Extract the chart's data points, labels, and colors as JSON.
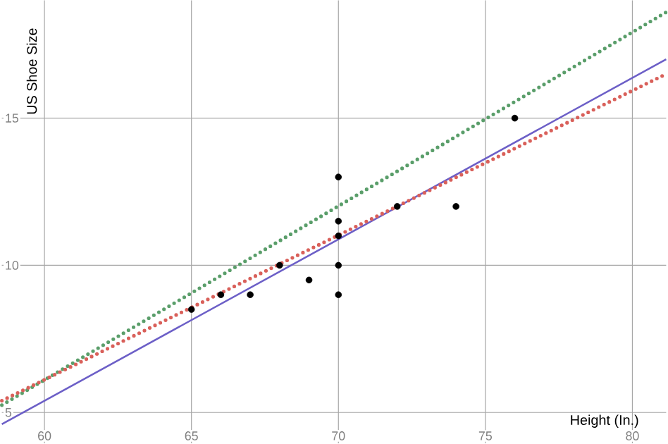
{
  "chart_data": {
    "type": "line",
    "xlabel": "Height (In.)",
    "ylabel": "US Shoe Size",
    "xlim": [
      58.55,
      81.15
    ],
    "ylim": [
      3.95,
      19
    ],
    "xticks": [
      60,
      65,
      70,
      75,
      80
    ],
    "yticks": [
      5,
      10,
      15
    ],
    "grid": true,
    "series": [
      {
        "color": "#6c5fc7",
        "marker": "none",
        "line_style": "solid",
        "x": [
          58.55,
          81.15
        ],
        "values": [
          4.6,
          17
        ]
      },
      {
        "color": "#5a9e6a",
        "marker": "none",
        "line_style": "dotted",
        "x": [
          58.55,
          81.15
        ],
        "values": [
          5.25,
          18.6
        ]
      },
      {
        "color": "#d9605a",
        "marker": "none",
        "line_style": "dotted",
        "x": [
          58.55,
          81.15
        ],
        "values": [
          5.4,
          16.5
        ]
      },
      {
        "type": "scatter",
        "marker": "circle",
        "color": "#000000",
        "x": [
          65,
          66,
          67,
          68,
          69,
          70,
          70,
          70,
          70,
          70,
          72,
          74,
          76
        ],
        "values": [
          8.5,
          9,
          9,
          10,
          9.5,
          9,
          10,
          11,
          11.5,
          13,
          12,
          12,
          15
        ]
      }
    ]
  }
}
